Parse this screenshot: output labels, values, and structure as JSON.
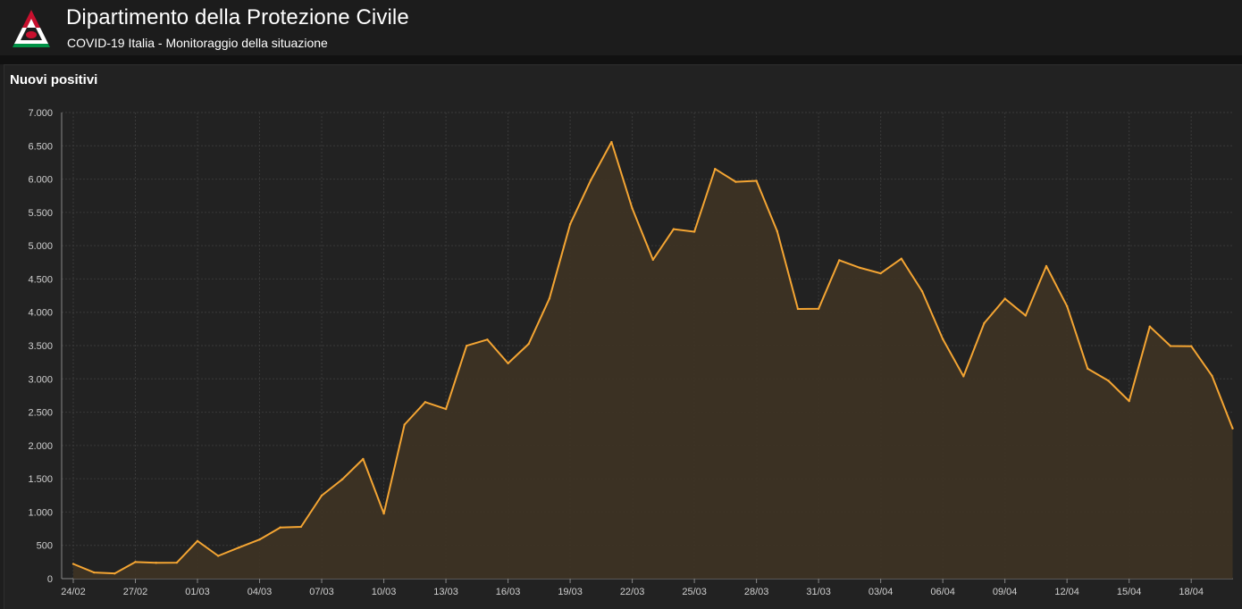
{
  "header": {
    "title": "Dipartimento della Protezione Civile",
    "subtitle": "COVID-19 Italia - Monitoraggio della situazione",
    "logo_colors": [
      "#c8102e",
      "#ffffff",
      "#009246"
    ]
  },
  "panel": {
    "title": "Nuovi positivi"
  },
  "colors": {
    "line": "#f4a533",
    "area": "#3d3324",
    "grid": "#3a3a3a",
    "text": "#cfcfcf"
  },
  "chart_data": {
    "type": "area",
    "title": "Nuovi positivi",
    "xlabel": "",
    "ylabel": "",
    "ylim": [
      0,
      7000
    ],
    "yticks": [
      0,
      500,
      1000,
      1500,
      2000,
      2500,
      3000,
      3500,
      4000,
      4500,
      5000,
      5500,
      6000,
      6500,
      7000
    ],
    "ytick_labels": [
      "0",
      "500",
      "1.000",
      "1.500",
      "2.000",
      "2.500",
      "3.000",
      "3.500",
      "4.000",
      "4.500",
      "5.000",
      "5.500",
      "6.000",
      "6.500",
      "7.000"
    ],
    "xtick_labels": [
      "24/02",
      "27/02",
      "01/03",
      "04/03",
      "07/03",
      "10/03",
      "13/03",
      "16/03",
      "19/03",
      "22/03",
      "25/03",
      "28/03",
      "31/03",
      "03/04",
      "06/04",
      "09/04",
      "12/04",
      "15/04",
      "18/04"
    ],
    "xtick_every": 3,
    "grid": true,
    "series": [
      {
        "values": [
          221,
          93,
          78,
          250,
          238,
          240,
          566,
          342,
          466,
          587,
          769,
          778,
          1247,
          1492,
          1797,
          977,
          2313,
          2651,
          2547,
          3497,
          3590,
          3233,
          3526,
          4207,
          5322,
          5986,
          6557,
          5560,
          4789,
          5249,
          5210,
          6153,
          5959,
          5974,
          5217,
          4050,
          4053,
          4782,
          4668,
          4585,
          4805,
          4316,
          3599,
          3039,
          3836,
          4204,
          3951,
          4694,
          4092,
          3153,
          2972,
          2667,
          3786,
          3493,
          3491,
          3047,
          2256
        ]
      }
    ]
  }
}
